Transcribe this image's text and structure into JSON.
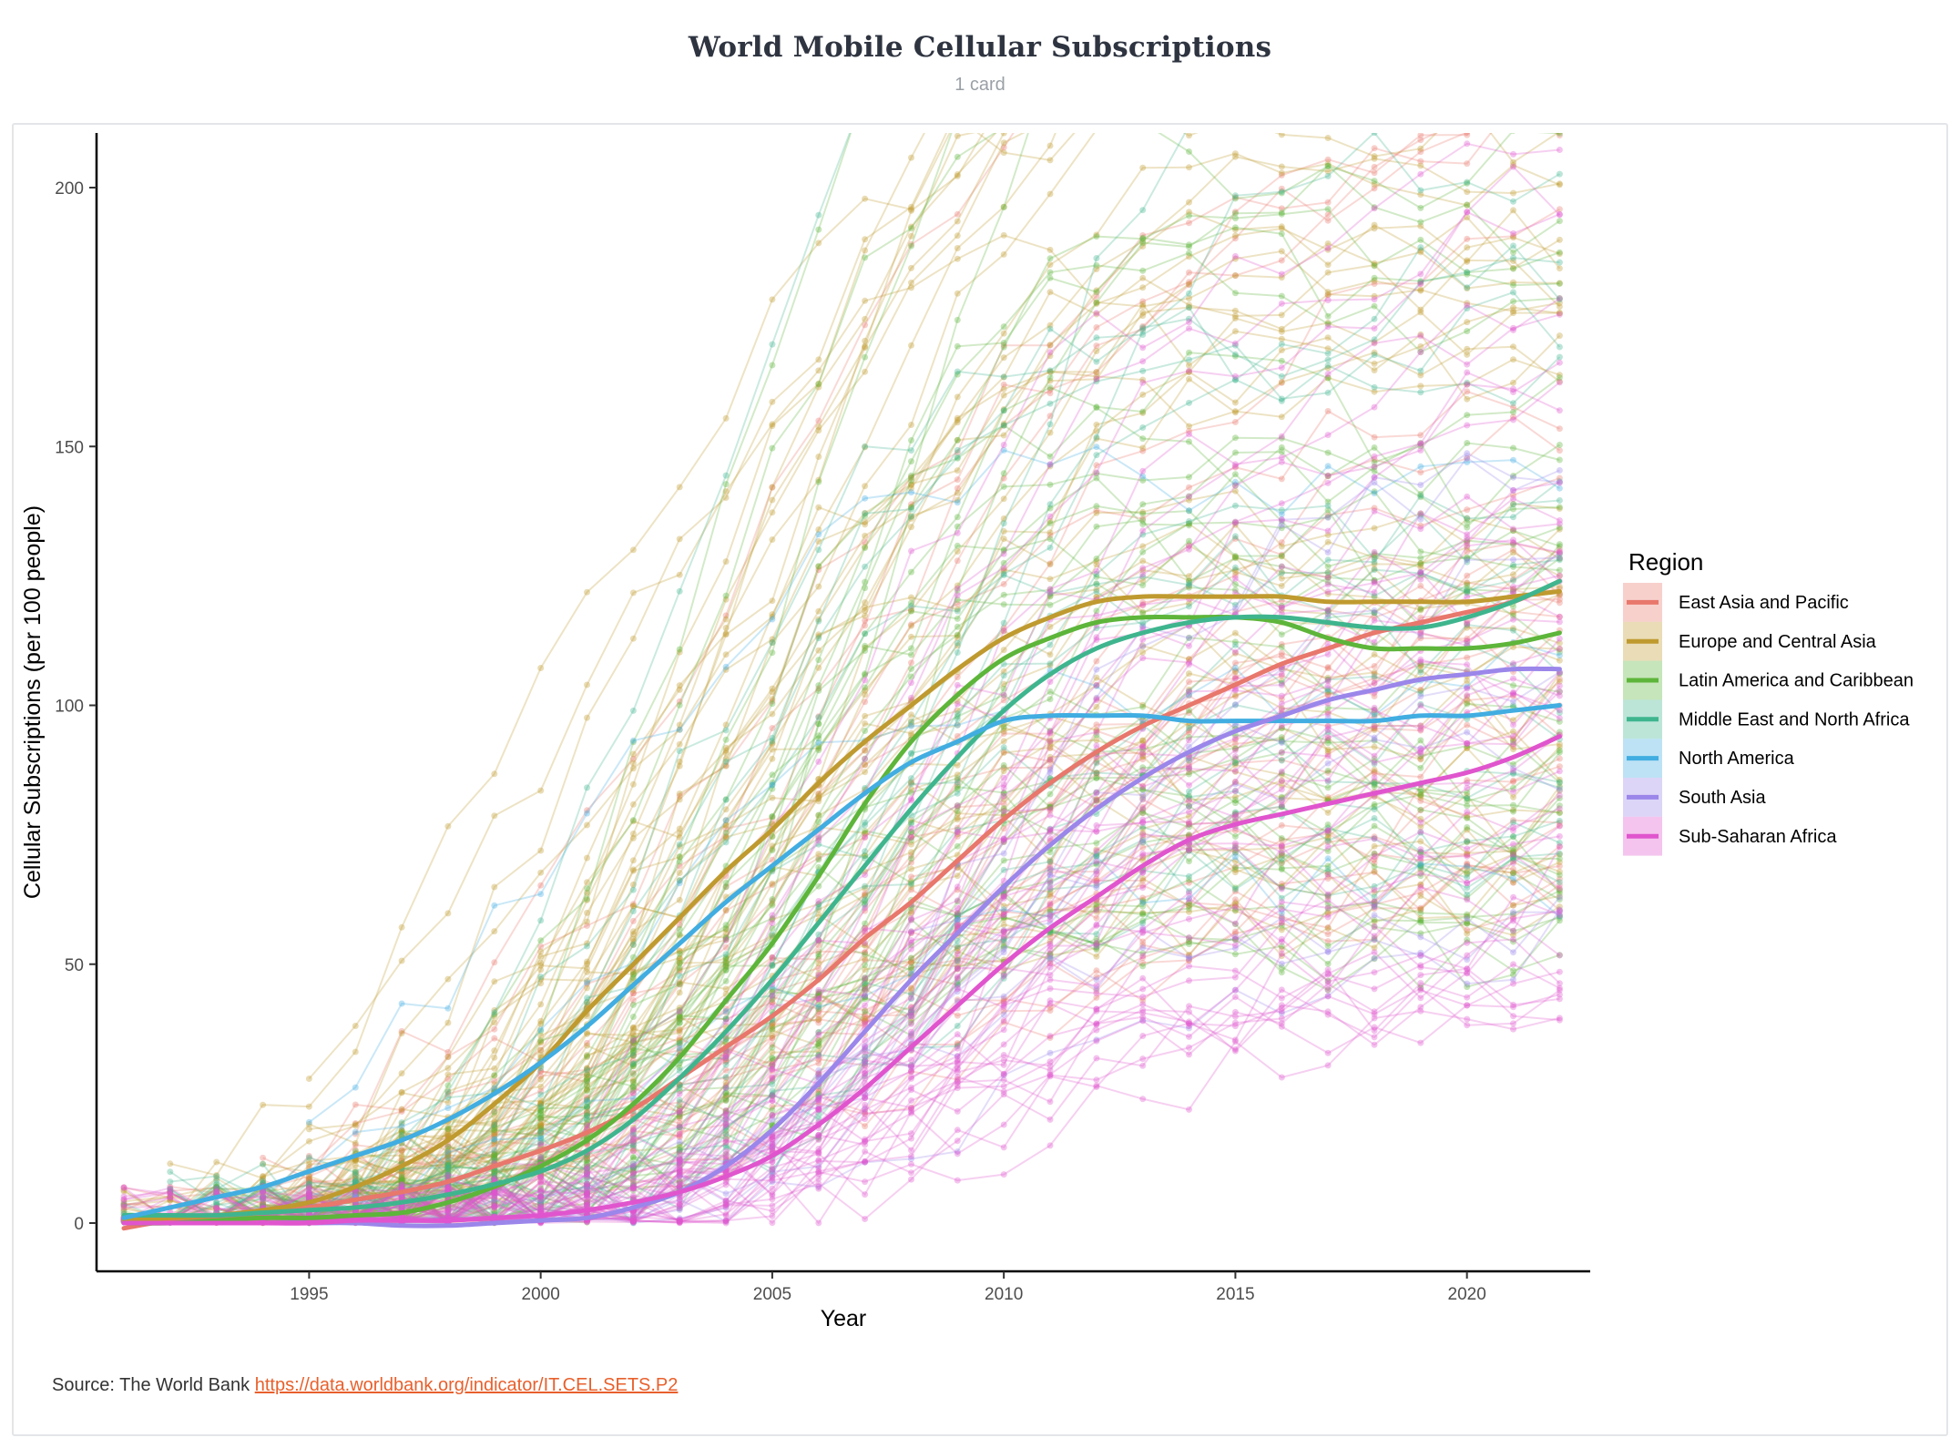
{
  "header": {
    "title": "World Mobile Cellular Subscriptions",
    "subtitle": "1 card"
  },
  "source": {
    "label": "Source:  The World Bank ",
    "link_text": "https://data.worldbank.org/indicator/IT.CEL.SETS.P2"
  },
  "chart_data": {
    "type": "line",
    "title": "",
    "xlabel": "Year",
    "ylabel": "Cellular Subscriptions (per 100 people)",
    "xlim": [
      1991,
      2022
    ],
    "ylim": [
      -10,
      210
    ],
    "x_ticks": [
      1995,
      2000,
      2005,
      2010,
      2015,
      2020
    ],
    "y_ticks": [
      0,
      50,
      100,
      150,
      200
    ],
    "grid": false,
    "legend": {
      "title": "Region",
      "placement": "right"
    },
    "x": [
      1991,
      1992,
      1993,
      1994,
      1995,
      1996,
      1997,
      1998,
      1999,
      2000,
      2001,
      2002,
      2003,
      2004,
      2005,
      2006,
      2007,
      2008,
      2009,
      2010,
      2011,
      2012,
      2013,
      2014,
      2015,
      2016,
      2017,
      2018,
      2019,
      2020,
      2021,
      2022
    ],
    "series": [
      {
        "name": "East Asia and Pacific",
        "color": "#e8776c",
        "values": [
          -1,
          0.5,
          1,
          2,
          3,
          4.5,
          6,
          8,
          11,
          14,
          17.5,
          22,
          28,
          34,
          40,
          47,
          55,
          62,
          70,
          78,
          85,
          91,
          96,
          100,
          104,
          108,
          111,
          114,
          116,
          118,
          120,
          124
        ]
      },
      {
        "name": "Europe and Central Asia",
        "color": "#bf9a2f",
        "values": [
          0.5,
          1,
          1.5,
          2.5,
          4,
          7,
          11,
          16,
          23,
          31,
          41,
          50,
          59,
          68,
          76,
          85,
          93,
          100,
          107,
          113,
          117,
          120,
          121,
          121,
          121,
          121,
          120,
          120,
          120,
          120,
          121,
          122
        ]
      },
      {
        "name": "Latin America and Caribbean",
        "color": "#5db53a",
        "values": [
          0,
          0,
          0.5,
          1,
          1,
          1.5,
          2,
          4,
          7,
          11,
          16,
          23,
          32,
          43,
          54,
          67,
          81,
          93,
          102,
          109,
          113,
          116,
          117,
          117,
          117,
          116,
          113,
          111,
          111,
          111,
          112,
          114
        ]
      },
      {
        "name": "Middle East and North Africa",
        "color": "#3fb58e",
        "values": [
          1.5,
          1.5,
          1.5,
          2,
          2.5,
          3,
          4,
          5.5,
          7.5,
          10,
          14,
          20,
          28,
          37,
          47,
          58,
          69,
          80,
          90,
          99,
          106,
          111,
          114,
          116,
          117,
          117,
          116,
          115,
          115,
          117,
          120,
          124
        ]
      },
      {
        "name": "North America",
        "color": "#41ade1",
        "values": [
          1,
          3,
          5,
          7,
          10,
          13,
          16,
          20,
          25,
          31,
          38,
          46,
          54,
          62,
          69,
          76,
          83,
          89,
          93,
          97,
          98,
          98,
          98,
          97,
          97,
          97,
          97,
          97,
          98,
          98,
          99,
          100
        ]
      },
      {
        "name": "South Asia",
        "color": "#9b86ea",
        "values": [
          0,
          0,
          0,
          0,
          0,
          0,
          -0.5,
          -0.5,
          0,
          0.5,
          1,
          3,
          6,
          11,
          18,
          27,
          37,
          47,
          56,
          65,
          73,
          80,
          86,
          91,
          95,
          98,
          101,
          103,
          105,
          106,
          107,
          107
        ]
      },
      {
        "name": "Sub-Saharan Africa",
        "color": "#e055cd",
        "values": [
          0,
          0,
          0,
          0,
          0,
          0.5,
          0.5,
          0.5,
          1,
          1.5,
          2.5,
          4,
          6,
          9,
          13,
          19,
          26,
          34,
          42,
          50,
          57,
          63,
          69,
          74,
          77,
          79,
          81,
          83,
          85,
          87,
          90,
          94
        ]
      }
    ]
  }
}
